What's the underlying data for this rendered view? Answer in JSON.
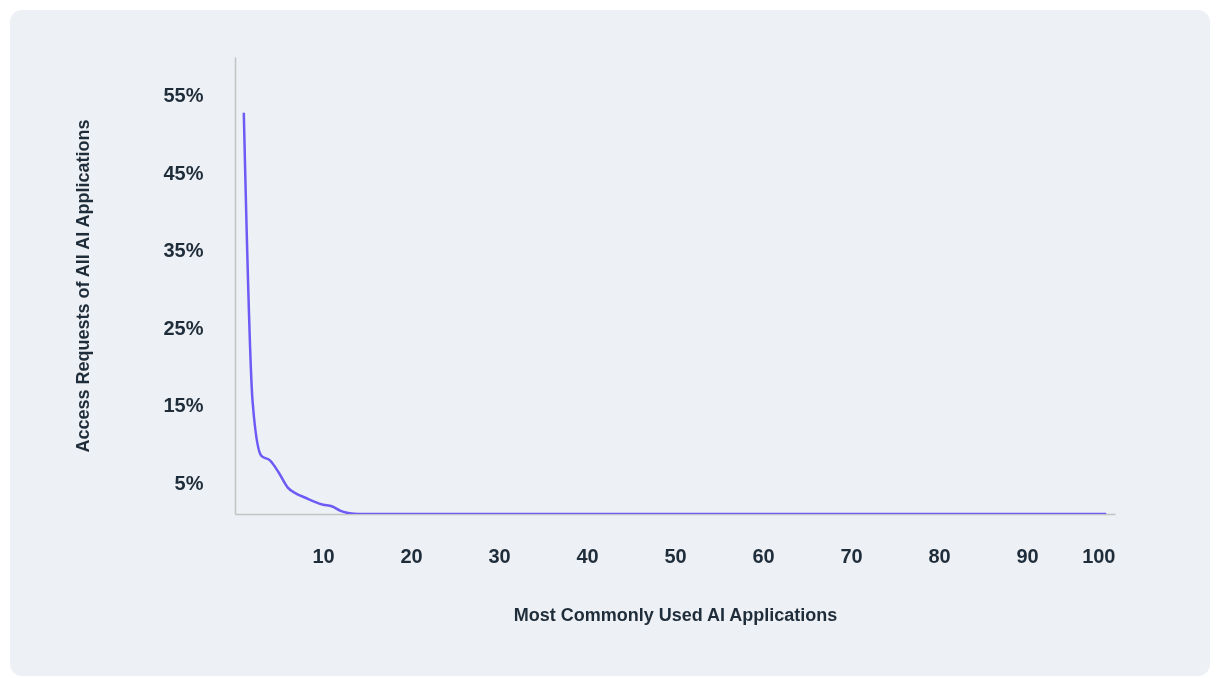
{
  "chart_data": {
    "type": "line",
    "xlabel": "Most Commonly Used AI Applications",
    "ylabel": "Access Requests of All AI Applications",
    "x": [
      1,
      2,
      3,
      4,
      5,
      6,
      7,
      8,
      9,
      10,
      11,
      12,
      13,
      14,
      20,
      30,
      40,
      50,
      60,
      70,
      80,
      90,
      99
    ],
    "series": [
      {
        "color": "#6e5af5",
        "values": [
          52.8,
          15.5,
          8.5,
          7.9,
          6.3,
          4.4,
          3.6,
          3.1,
          2.6,
          2.2,
          2.0,
          1.4,
          1.1,
          1.0,
          1.0,
          1.0,
          1.0,
          1.0,
          1.0,
          1.0,
          1.0,
          1.0,
          1.0
        ]
      }
    ],
    "xlim": [
      0,
      100
    ],
    "xticks": [
      10,
      20,
      30,
      40,
      50,
      60,
      70,
      80,
      90,
      100
    ],
    "ylim": [
      1,
      60
    ],
    "yticks": [
      {
        "value": 5,
        "label": "5%"
      },
      {
        "value": 15,
        "label": "15%"
      },
      {
        "value": 25,
        "label": "25%"
      },
      {
        "value": 35,
        "label": "35%"
      },
      {
        "value": 45,
        "label": "45%"
      },
      {
        "value": 55,
        "label": "55%"
      }
    ],
    "grid": false
  }
}
